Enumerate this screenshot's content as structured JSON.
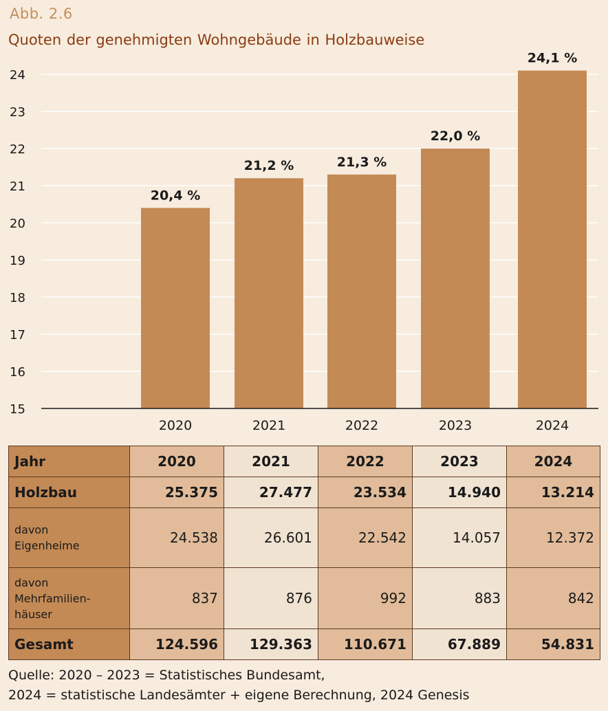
{
  "figure": {
    "number": "Abb. 2.6",
    "title": "Quoten der genehmigten  Wohngebäude  in Holzbauweise"
  },
  "chart_data": {
    "type": "bar",
    "categories": [
      "2020",
      "2021",
      "2022",
      "2023",
      "2024"
    ],
    "values": [
      20.4,
      21.2,
      21.3,
      22.0,
      24.1
    ],
    "data_labels": [
      "20,4 %",
      "21,2 %",
      "21,3 %",
      "22,0 %",
      "24,1 %"
    ],
    "title": "Quoten der genehmigten  Wohngebäude  in Holzbauweise",
    "xlabel": "",
    "ylabel": "",
    "ylim": [
      15,
      24
    ],
    "yticks": [
      15,
      16,
      17,
      18,
      19,
      20,
      21,
      22,
      23,
      24
    ],
    "grid": true,
    "bar_color": "#c48a55",
    "grid_color": "#ffffff"
  },
  "table": {
    "header_label": "Jahr",
    "years": [
      "2020",
      "2021",
      "2022",
      "2023",
      "2024"
    ],
    "rows": [
      {
        "label": "Holzbau",
        "values": [
          "25.375",
          "27.477",
          "23.534",
          "14.940",
          "13.214"
        ]
      },
      {
        "label": "davon\nEigenheime",
        "values": [
          "24.538",
          "26.601",
          "22.542",
          "14.057",
          "12.372"
        ]
      },
      {
        "label": "davon\nMehrfamilien-\nhäuser",
        "values": [
          "837",
          "876",
          "992",
          "883",
          "842"
        ]
      },
      {
        "label": "Gesamt",
        "values": [
          "124.596",
          "129.363",
          "110.671",
          "67.889",
          "54.831"
        ]
      }
    ]
  },
  "source": {
    "line1": "Quelle: 2020 – 2023 = Statistisches Bundesamt,",
    "line2": "2024 = statistische Landesämter + eigene Berechnung, 2024 Genesis"
  }
}
